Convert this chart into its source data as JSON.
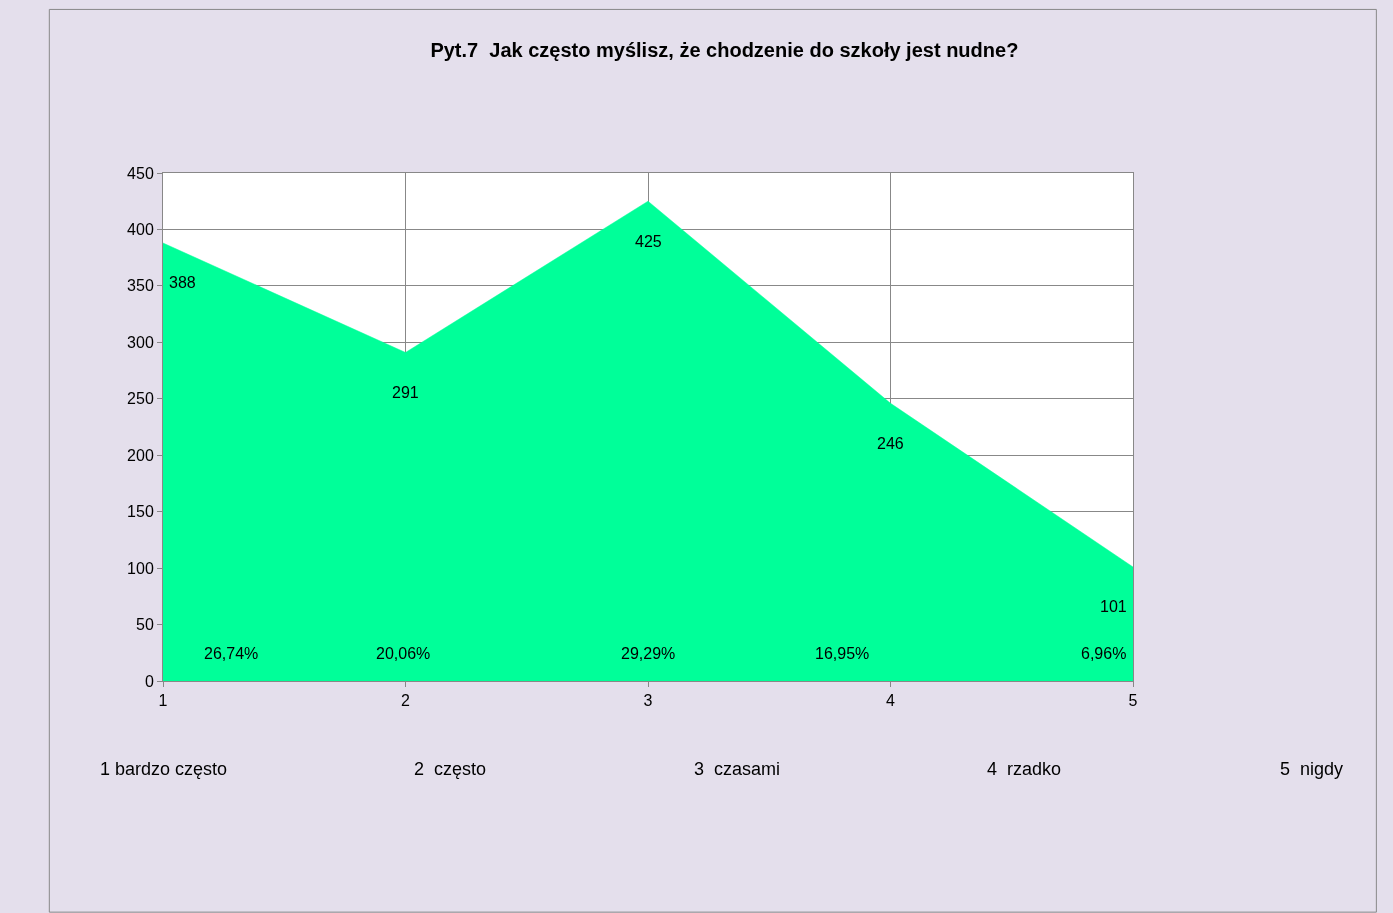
{
  "chart_data": {
    "type": "area",
    "title": "Pyt.7  Jak często myślisz, że chodzenie do szkoły jest nudne?",
    "x": [
      1,
      2,
      3,
      4,
      5
    ],
    "series": [
      {
        "color": "#00ff99",
        "values": [
          388,
          291,
          425,
          246,
          101
        ]
      }
    ],
    "data_labels": true,
    "xlim": [
      1,
      5
    ],
    "xticks": [
      1,
      2,
      3,
      4,
      5
    ],
    "ylim": [
      0,
      450
    ],
    "yticks": [
      0,
      50,
      100,
      150,
      200,
      250,
      300,
      350,
      400,
      450
    ],
    "grid": true,
    "annotations": [
      "26,74%",
      "20,06%",
      "29,29%",
      "16,95%",
      "6,96%",
      "1 bardzo często",
      "2  często",
      "3  czasami",
      "4  rzadko",
      "5  nigdy"
    ]
  }
}
